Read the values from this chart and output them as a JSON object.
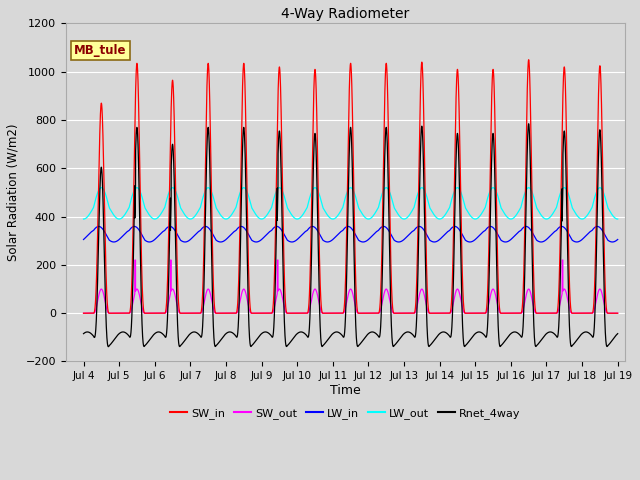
{
  "title": "4-Way Radiometer",
  "xlabel": "Time",
  "ylabel": "Solar Radiation (W/m2)",
  "annotation": "MB_tule",
  "ylim": [
    -200,
    1200
  ],
  "xlim_days": [
    3.5,
    19.2
  ],
  "xticks": [
    4,
    5,
    6,
    7,
    8,
    9,
    10,
    11,
    12,
    13,
    14,
    15,
    16,
    17,
    18,
    19
  ],
  "xtick_labels": [
    "Jul 4",
    "Jul 5",
    "Jul 6",
    "Jul 7",
    "Jul 8",
    "Jul 9",
    "Jul 10",
    "Jul 11",
    "Jul 12",
    "Jul 13",
    "Jul 14",
    "Jul 15",
    "Jul 16",
    "Jul 17",
    "Jul 18",
    "Jul 19"
  ],
  "legend": [
    "SW_in",
    "SW_out",
    "LW_in",
    "LW_out",
    "Rnet_4way"
  ],
  "legend_colors": [
    "#ff0000",
    "#ff00ff",
    "#0000ff",
    "#00ffff",
    "#000000"
  ],
  "bg_color": "#d8d8d8",
  "plot_bg_color": "#d8d8d8",
  "grid_color": "#ffffff",
  "day_start": 4,
  "n_days": 15,
  "SW_in_peak": 1030,
  "SW_out_peak": 100,
  "LW_in_base": 320,
  "LW_out_base": 430,
  "Rnet_peak": 800
}
